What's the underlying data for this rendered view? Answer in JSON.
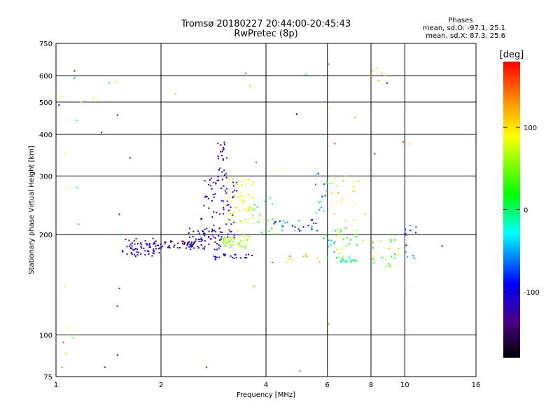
{
  "header": {
    "title_line1": "Tromsø 20180227 20:44:00-20:45:43",
    "title_line2": "RwPretec (8p)",
    "stats_title": "Phases",
    "stats_o": "mean, sd,O: -97.1, 25.1",
    "stats_x": "mean, sd,X:  87.3, 25.6"
  },
  "chart_data": {
    "type": "scatter",
    "xlabel": "Frequency [MHz]",
    "ylabel": "Stationary phase Virtual Height [km]",
    "x_scale": "log",
    "y_scale": "log",
    "xlim": [
      1,
      16
    ],
    "ylim": [
      75,
      750
    ],
    "x_ticks": [
      1,
      2,
      4,
      6,
      8,
      10,
      16
    ],
    "x_tick_labels": [
      "1",
      "2",
      "4",
      "6",
      "8",
      "10",
      "16"
    ],
    "y_ticks": [
      75,
      100,
      200,
      300,
      400,
      500,
      600,
      750
    ],
    "y_tick_labels": [
      "75",
      "100",
      "200",
      "300",
      "400",
      "500",
      "600",
      "750"
    ],
    "grid": true,
    "colorbar": {
      "label": "[deg]",
      "range": [
        -180,
        180
      ],
      "ticks": [
        100,
        0,
        -100
      ],
      "tick_labels": [
        "100",
        "0",
        "-100"
      ],
      "colormap": "rainbow",
      "colors": [
        "#000000",
        "#4b0082",
        "#0000ff",
        "#00ffff",
        "#00ff00",
        "#ffff00",
        "#ff8c00",
        "#ff0000"
      ]
    },
    "clusters": [
      {
        "x": [
          1.55,
          2.0
        ],
        "y": [
          172,
          195
        ],
        "n": 70,
        "phase": [
          -130,
          -85
        ]
      },
      {
        "x": [
          2.0,
          2.5
        ],
        "y": [
          182,
          192
        ],
        "n": 40,
        "phase": [
          -150,
          -115
        ]
      },
      {
        "x": [
          2.4,
          3.0
        ],
        "y": [
          180,
          210
        ],
        "n": 60,
        "phase": [
          -120,
          -85
        ]
      },
      {
        "x": [
          2.6,
          3.3
        ],
        "y": [
          195,
          300
        ],
        "n": 70,
        "phase": [
          -125,
          -90
        ]
      },
      {
        "x": [
          2.9,
          3.1
        ],
        "y": [
          290,
          390
        ],
        "n": 25,
        "phase": [
          -140,
          -100
        ]
      },
      {
        "x": [
          3.0,
          3.6
        ],
        "y": [
          182,
          198
        ],
        "n": 40,
        "phase": [
          40,
          75
        ]
      },
      {
        "x": [
          3.1,
          3.7
        ],
        "y": [
          200,
          300
        ],
        "n": 55,
        "phase": [
          65,
          100
        ]
      },
      {
        "x": [
          2.8,
          3.7
        ],
        "y": [
          168,
          175
        ],
        "n": 25,
        "phase": [
          -110,
          -90
        ]
      },
      {
        "x": [
          3.7,
          4.3
        ],
        "y": [
          200,
          280
        ],
        "n": 15,
        "phase": [
          -20,
          40
        ]
      },
      {
        "x": [
          4.2,
          5.7
        ],
        "y": [
          205,
          222
        ],
        "n": 30,
        "phase": [
          -120,
          -20
        ]
      },
      {
        "x": [
          5.5,
          6.0
        ],
        "y": [
          230,
          310
        ],
        "n": 15,
        "phase": [
          -100,
          0
        ]
      },
      {
        "x": [
          6.0,
          7.7
        ],
        "y": [
          220,
          300
        ],
        "n": 20,
        "phase": [
          60,
          130
        ]
      },
      {
        "x": [
          6.0,
          7.6
        ],
        "y": [
          170,
          210
        ],
        "n": 30,
        "phase": [
          -20,
          100
        ]
      },
      {
        "x": [
          6.5,
          7.3
        ],
        "y": [
          165,
          172
        ],
        "n": 20,
        "phase": [
          -40,
          20
        ]
      },
      {
        "x": [
          7.9,
          9.6
        ],
        "y": [
          160,
          195
        ],
        "n": 25,
        "phase": [
          0,
          120
        ]
      },
      {
        "x": [
          10.0,
          10.8
        ],
        "y": [
          165,
          215
        ],
        "n": 12,
        "phase": [
          -110,
          -40
        ]
      },
      {
        "x": [
          4.0,
          6.0
        ],
        "y": [
          165,
          175
        ],
        "n": 10,
        "phase": [
          100,
          160
        ]
      },
      {
        "x": [
          5.8,
          6.3
        ],
        "y": [
          175,
          200
        ],
        "n": 8,
        "phase": [
          -70,
          0
        ]
      }
    ],
    "points": [
      {
        "x": 1.02,
        "y": 490,
        "phase": -120
      },
      {
        "x": 1.04,
        "y": 520,
        "phase": 100
      },
      {
        "x": 1.06,
        "y": 350,
        "phase": 90
      },
      {
        "x": 1.07,
        "y": 275,
        "phase": 95
      },
      {
        "x": 1.05,
        "y": 95,
        "phase": 160
      },
      {
        "x": 1.04,
        "y": 80,
        "phase": 150
      },
      {
        "x": 1.07,
        "y": 88,
        "phase": 60
      },
      {
        "x": 1.08,
        "y": 105,
        "phase": 90
      },
      {
        "x": 1.06,
        "y": 140,
        "phase": 70
      },
      {
        "x": 1.12,
        "y": 98,
        "phase": 40
      },
      {
        "x": 1.13,
        "y": 620,
        "phase": -90
      },
      {
        "x": 1.13,
        "y": 590,
        "phase": -60
      },
      {
        "x": 1.15,
        "y": 440,
        "phase": -20
      },
      {
        "x": 1.15,
        "y": 277,
        "phase": -10
      },
      {
        "x": 1.16,
        "y": 215,
        "phase": -40
      },
      {
        "x": 1.18,
        "y": 500,
        "phase": 90
      },
      {
        "x": 1.28,
        "y": 515,
        "phase": 100
      },
      {
        "x": 1.32,
        "y": 503,
        "phase": 80
      },
      {
        "x": 1.35,
        "y": 405,
        "phase": -130
      },
      {
        "x": 1.42,
        "y": 570,
        "phase": -30
      },
      {
        "x": 1.49,
        "y": 575,
        "phase": 100
      },
      {
        "x": 1.5,
        "y": 457,
        "phase": -120
      },
      {
        "x": 1.52,
        "y": 230,
        "phase": -110
      },
      {
        "x": 1.53,
        "y": 200,
        "phase": -60
      },
      {
        "x": 1.52,
        "y": 138,
        "phase": -80
      },
      {
        "x": 1.5,
        "y": 122,
        "phase": -100
      },
      {
        "x": 1.5,
        "y": 87,
        "phase": -110
      },
      {
        "x": 1.38,
        "y": 80,
        "phase": -110
      },
      {
        "x": 1.63,
        "y": 340,
        "phase": -120
      },
      {
        "x": 2.2,
        "y": 530,
        "phase": 60
      },
      {
        "x": 2.7,
        "y": 80,
        "phase": -100
      },
      {
        "x": 3.5,
        "y": 610,
        "phase": -60
      },
      {
        "x": 3.6,
        "y": 558,
        "phase": 110
      },
      {
        "x": 3.7,
        "y": 140,
        "phase": 130
      },
      {
        "x": 3.75,
        "y": 330,
        "phase": 160
      },
      {
        "x": 4.3,
        "y": 310,
        "phase": 90
      },
      {
        "x": 4.9,
        "y": 460,
        "phase": -100
      },
      {
        "x": 5.0,
        "y": 78,
        "phase": 150
      },
      {
        "x": 5.2,
        "y": 605,
        "phase": -20
      },
      {
        "x": 6.05,
        "y": 650,
        "phase": 150
      },
      {
        "x": 6.1,
        "y": 480,
        "phase": 100
      },
      {
        "x": 6.05,
        "y": 108,
        "phase": 30
      },
      {
        "x": 6.3,
        "y": 375,
        "phase": 170
      },
      {
        "x": 7.2,
        "y": 450,
        "phase": 120
      },
      {
        "x": 8.0,
        "y": 600,
        "phase": 150
      },
      {
        "x": 8.1,
        "y": 620,
        "phase": 110
      },
      {
        "x": 8.3,
        "y": 630,
        "phase": 100
      },
      {
        "x": 8.4,
        "y": 580,
        "phase": 130
      },
      {
        "x": 8.6,
        "y": 610,
        "phase": 120
      },
      {
        "x": 8.8,
        "y": 600,
        "phase": 100
      },
      {
        "x": 8.9,
        "y": 570,
        "phase": -140
      },
      {
        "x": 8.2,
        "y": 350,
        "phase": -80
      },
      {
        "x": 9.9,
        "y": 380,
        "phase": 170
      },
      {
        "x": 10.3,
        "y": 375,
        "phase": 100
      },
      {
        "x": 10.0,
        "y": 140,
        "phase": 30
      },
      {
        "x": 12.8,
        "y": 185,
        "phase": -140
      }
    ]
  }
}
